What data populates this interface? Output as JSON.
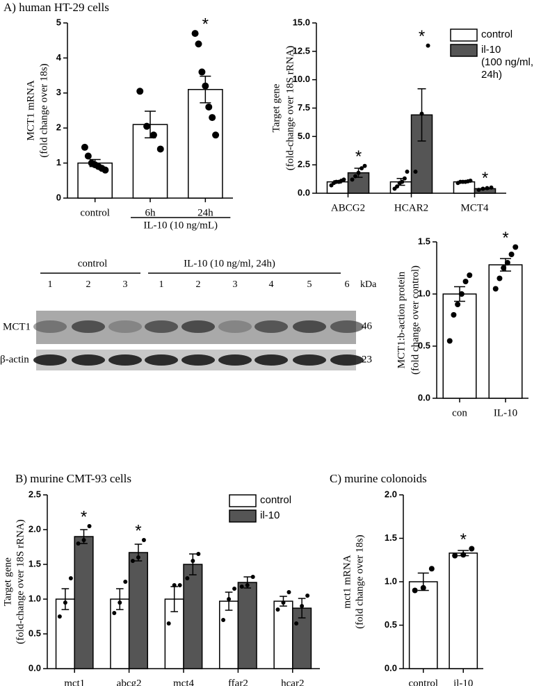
{
  "chart_data": [
    {
      "type": "bar",
      "title": "A) human HT-29 cells",
      "ylabel": [
        "MCT1 mRNA",
        "(fold change over 18s)"
      ],
      "categories": [
        "control",
        "6h",
        "24h"
      ],
      "group_label": "IL-10 (10 ng/mL)",
      "values": [
        1.0,
        2.1,
        3.1
      ],
      "errors": [
        0.1,
        0.38,
        0.38
      ],
      "points": [
        [
          1.45,
          1.2,
          1.0,
          0.95,
          0.9,
          0.85,
          0.8
        ],
        [
          3.05,
          2.05,
          1.8,
          1.4
        ],
        [
          4.7,
          4.4,
          3.6,
          3.2,
          2.6,
          2.3,
          1.8
        ]
      ],
      "annotations": [
        null,
        null,
        "*"
      ],
      "color": "#ffffff",
      "ylim": [
        0,
        5
      ],
      "yticks": [
        0,
        1,
        2,
        3,
        4,
        5
      ]
    },
    {
      "type": "bar",
      "ylabel": [
        "Target gene",
        "(fold-change over 18S rRNA)"
      ],
      "categories": [
        "ABCG2",
        "HCAR2",
        "MCT4"
      ],
      "series": [
        {
          "name": "control",
          "color": "#ffffff",
          "values": [
            1.0,
            1.0,
            1.0
          ],
          "errors": [
            0.1,
            0.3,
            0.05
          ],
          "points": [
            [
              0.7,
              0.9,
              1.0,
              1.0,
              1.1,
              1.2
            ],
            [
              0.4,
              0.6,
              0.9,
              1.0,
              1.3,
              1.9
            ],
            [
              0.9,
              1.0,
              1.0,
              1.0,
              1.05,
              1.1
            ]
          ],
          "annotations": [
            null,
            null,
            null
          ]
        },
        {
          "name": "il-10\n(100 ng/ml,\n24h)",
          "color": "#555555",
          "values": [
            1.8,
            6.9,
            0.4
          ],
          "errors": [
            0.4,
            2.3,
            0.05
          ],
          "points": [
            [
              1.2,
              1.5,
              1.8,
              2.2,
              2.4
            ],
            [
              1.9,
              7.0,
              13.0
            ],
            [
              0.3,
              0.4,
              0.45,
              0.5
            ]
          ],
          "annotations": [
            "*",
            "*",
            "*"
          ]
        }
      ],
      "ylim": [
        0,
        15
      ],
      "yticks": [
        {
          "value": 0,
          "label": "0.0"
        },
        2.5,
        {
          "value": 5,
          "label": "5.0"
        },
        7.5,
        {
          "value": 10,
          "label": "10.0"
        },
        12.5,
        {
          "value": 15,
          "label": "15.0"
        }
      ]
    },
    {
      "type": "bar",
      "ylabel": [
        "MCT1:b-action protein",
        "(fold change over control)"
      ],
      "categories": [
        "con",
        "IL-10"
      ],
      "values": [
        1.0,
        1.28
      ],
      "errors": [
        0.07,
        0.06
      ],
      "points": [
        [
          0.55,
          0.8,
          0.9,
          1.0,
          1.12,
          1.18
        ],
        [
          1.05,
          1.15,
          1.25,
          1.3,
          1.38,
          1.45
        ]
      ],
      "annotations": [
        null,
        "*"
      ],
      "color": "#ffffff",
      "ylim": [
        0,
        1.5
      ],
      "yticks": [
        {
          "value": 0,
          "label": "0.0"
        },
        0.5,
        {
          "value": 1,
          "label": "1.0"
        },
        1.5
      ]
    },
    {
      "type": "bar",
      "title": "B) murine CMT-93 cells",
      "ylabel": [
        "Target gene",
        "(fold-change over 18S rRNA)"
      ],
      "categories": [
        "mct1",
        "abcg2",
        "mct4",
        "ffar2",
        "hcar2"
      ],
      "series": [
        {
          "name": "control",
          "color": "#ffffff",
          "values": [
            1.0,
            1.0,
            1.0,
            0.97,
            0.97
          ],
          "errors": [
            0.15,
            0.15,
            0.18,
            0.13,
            0.07
          ],
          "points": [
            [
              0.75,
              0.95,
              1.3
            ],
            [
              0.8,
              0.95,
              1.25
            ],
            [
              0.65,
              1.2,
              1.2
            ],
            [
              0.7,
              1.0,
              1.15
            ],
            [
              0.85,
              0.95,
              1.1
            ]
          ],
          "annotations": [
            null,
            null,
            null,
            null,
            null
          ]
        },
        {
          "name": "il-10",
          "color": "#555555",
          "values": [
            1.9,
            1.67,
            1.5,
            1.24,
            0.87
          ],
          "errors": [
            0.1,
            0.12,
            0.15,
            0.08,
            0.14
          ],
          "points": [
            [
              1.8,
              1.85,
              2.05
            ],
            [
              1.55,
              1.6,
              1.85
            ],
            [
              1.3,
              1.55,
              1.65
            ],
            [
              1.18,
              1.2,
              1.32
            ],
            [
              0.65,
              0.9,
              1.05
            ]
          ],
          "annotations": [
            "*",
            "*",
            null,
            null,
            null
          ]
        }
      ],
      "ylim": [
        0,
        2.5
      ],
      "yticks": [
        {
          "value": 0,
          "label": "0.0"
        },
        0.5,
        {
          "value": 1,
          "label": "1.0"
        },
        1.5,
        {
          "value": 2,
          "label": "2.0"
        },
        2.5
      ]
    },
    {
      "type": "bar",
      "title": "C) murine colonoids",
      "ylabel": [
        "mct1 mRNA",
        "(fold change over 18s)"
      ],
      "categories": [
        "control",
        "il-10"
      ],
      "values": [
        1.0,
        1.33
      ],
      "errors": [
        0.1,
        0.03
      ],
      "points": [
        [
          0.9,
          0.93,
          1.15
        ],
        [
          1.3,
          1.31,
          1.38
        ]
      ],
      "annotations": [
        null,
        "*"
      ],
      "color": "#ffffff",
      "ylim": [
        0,
        2
      ],
      "yticks": [
        {
          "value": 0,
          "label": "0.0"
        },
        0.5,
        {
          "value": 1,
          "label": "1.0"
        },
        1.5,
        {
          "value": 2,
          "label": "2.0"
        }
      ]
    }
  ],
  "blot": {
    "group_labels": [
      "control",
      "IL-10 (10 ng/ml, 24h)"
    ],
    "lanes": [
      "1",
      "2",
      "3",
      "1",
      "2",
      "3",
      "4",
      "5",
      "6"
    ],
    "kda_label": "kDa",
    "rows": [
      {
        "label": "MCT1",
        "kda": "46"
      },
      {
        "label": "β-actin",
        "kda": "23"
      }
    ]
  }
}
